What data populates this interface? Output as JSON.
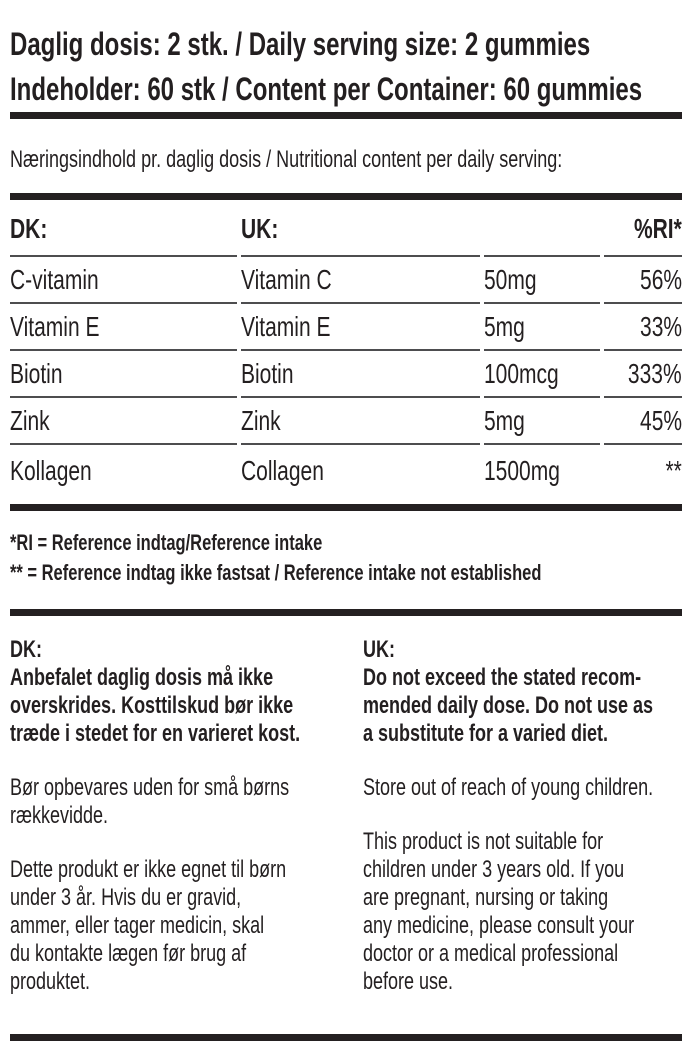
{
  "colors": {
    "text": "#231f20",
    "bar": "#242021",
    "divider": "#4d4d4f",
    "bg": "#ffffff"
  },
  "header": {
    "line1": "Daglig dosis: 2 stk. / Daily serving size: 2 gummies",
    "line2": "Indeholder: 60 stk / Content per Container: 60 gummies"
  },
  "subtitle": "Næringsindhold pr. daglig dosis / Nutritional content per daily serving:",
  "table": {
    "columns": [
      "DK:",
      "UK:",
      "",
      "%RI*"
    ],
    "rows": [
      {
        "dk": "C-vitamin",
        "uk": "Vitamin C",
        "amount": "50mg",
        "ri": "56%"
      },
      {
        "dk": "Vitamin E",
        "uk": "Vitamin E",
        "amount": "5mg",
        "ri": "33%"
      },
      {
        "dk": "Biotin",
        "uk": "Biotin",
        "amount": "100mcg",
        "ri": "333%"
      },
      {
        "dk": "Zink",
        "uk": "Zink",
        "amount": "5mg",
        "ri": "45%"
      },
      {
        "dk": "Kollagen",
        "uk": "Collagen",
        "amount": "1500mg",
        "ri": "**"
      }
    ]
  },
  "footnotes": [
    "*RI = Reference indtag/Reference intake",
    "** = Reference indtag ikke fastsat / Reference intake not established"
  ],
  "advisory": {
    "dk": {
      "heading": "DK:",
      "bold_paragraph": "Anbefalet daglig dosis må ikke\noverskrides. Kosttilskud bør ikke\ntræde i stedet for en varieret kost.",
      "paragraphs": [
        "Bør opbevares uden for små børns\nrækkevidde.",
        "Dette produkt er ikke egnet til børn\nunder 3 år. Hvis du er gravid,\nammer, eller tager medicin, skal\ndu kontakte lægen før brug af\nproduktet."
      ]
    },
    "uk": {
      "heading": "UK:",
      "bold_paragraph": "Do not exceed the stated recom-\nmended daily dose. Do not use as\na substitute for a varied diet.",
      "paragraphs": [
        "Store out of reach of young children.",
        "This product is not suitable for\nchildren under 3 years old. If you\nare pregnant, nursing or taking\nany medicine, please consult your\ndoctor or a medical professional\nbefore use."
      ]
    }
  }
}
